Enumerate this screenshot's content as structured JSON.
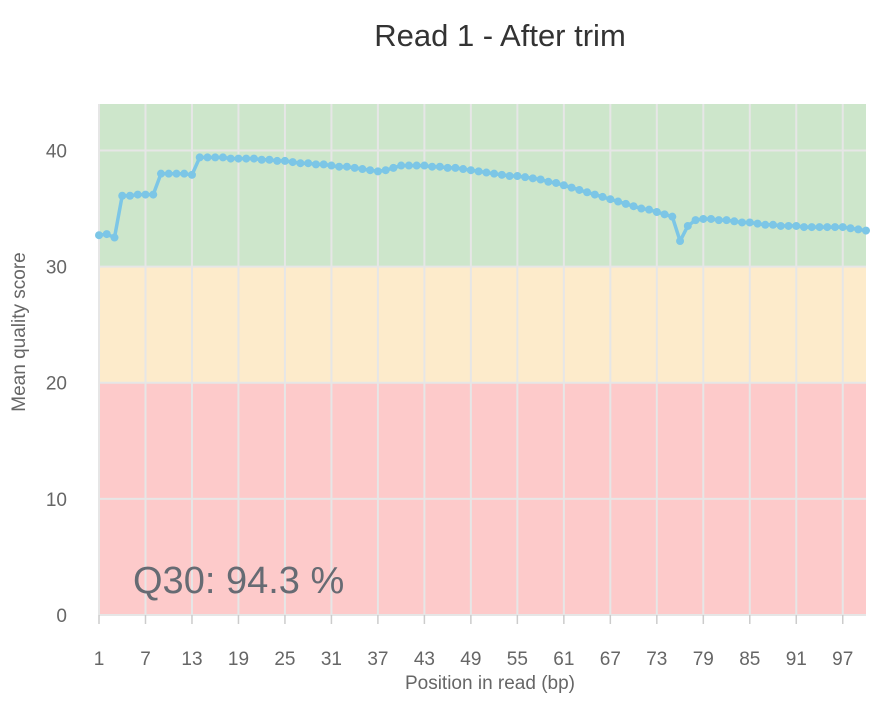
{
  "chart_data": {
    "type": "line",
    "title": "Read 1 - After trim",
    "xlabel": "Position in read (bp)",
    "ylabel": "Mean quality score",
    "xlim": [
      1,
      100
    ],
    "ylim": [
      0,
      44
    ],
    "x_ticks": [
      1,
      7,
      13,
      19,
      25,
      31,
      37,
      43,
      49,
      55,
      61,
      67,
      73,
      79,
      85,
      91,
      97
    ],
    "y_ticks": [
      0,
      10,
      20,
      30,
      40
    ],
    "grid": true,
    "legend": "none",
    "bands": [
      {
        "from": 0,
        "to": 20,
        "color": "#fdcaca"
      },
      {
        "from": 20,
        "to": 30,
        "color": "#fdebcb"
      },
      {
        "from": 30,
        "to": 44,
        "color": "#cde6cb"
      }
    ],
    "line_color": "#7cc6e6",
    "annotation": "Q30: 94.3 %",
    "series": [
      {
        "x": [
          1,
          2,
          3,
          4,
          5,
          6,
          7,
          8,
          9,
          10,
          11,
          12,
          13,
          14,
          15,
          16,
          17,
          18,
          19,
          20,
          21,
          22,
          23,
          24,
          25,
          26,
          27,
          28,
          29,
          30,
          31,
          32,
          33,
          34,
          35,
          36,
          37,
          38,
          39,
          40,
          41,
          42,
          43,
          44,
          45,
          46,
          47,
          48,
          49,
          50,
          51,
          52,
          53,
          54,
          55,
          56,
          57,
          58,
          59,
          60,
          61,
          62,
          63,
          64,
          65,
          66,
          67,
          68,
          69,
          70,
          71,
          72,
          73,
          74,
          75,
          76,
          77,
          78,
          79,
          80,
          81,
          82,
          83,
          84,
          85,
          86,
          87,
          88,
          89,
          90,
          91,
          92,
          93,
          94,
          95,
          96,
          97,
          98,
          99,
          100
        ],
        "values": [
          32.7,
          32.8,
          32.5,
          36.1,
          36.1,
          36.2,
          36.2,
          36.2,
          38.0,
          38.0,
          38.0,
          38.0,
          37.9,
          39.4,
          39.4,
          39.4,
          39.4,
          39.3,
          39.3,
          39.3,
          39.3,
          39.2,
          39.2,
          39.1,
          39.1,
          39.0,
          38.9,
          38.9,
          38.8,
          38.8,
          38.7,
          38.6,
          38.6,
          38.5,
          38.4,
          38.3,
          38.2,
          38.3,
          38.5,
          38.7,
          38.7,
          38.7,
          38.7,
          38.6,
          38.6,
          38.5,
          38.5,
          38.4,
          38.3,
          38.2,
          38.1,
          38.0,
          37.9,
          37.8,
          37.8,
          37.7,
          37.6,
          37.5,
          37.3,
          37.2,
          37.0,
          36.8,
          36.6,
          36.4,
          36.2,
          36.0,
          35.8,
          35.6,
          35.4,
          35.2,
          35.0,
          34.9,
          34.7,
          34.5,
          34.3,
          32.2,
          33.5,
          34.0,
          34.1,
          34.1,
          34.0,
          34.0,
          33.9,
          33.8,
          33.8,
          33.7,
          33.6,
          33.6,
          33.5,
          33.5,
          33.5,
          33.4,
          33.4,
          33.4,
          33.4,
          33.4,
          33.4,
          33.3,
          33.2,
          33.1
        ]
      }
    ]
  }
}
